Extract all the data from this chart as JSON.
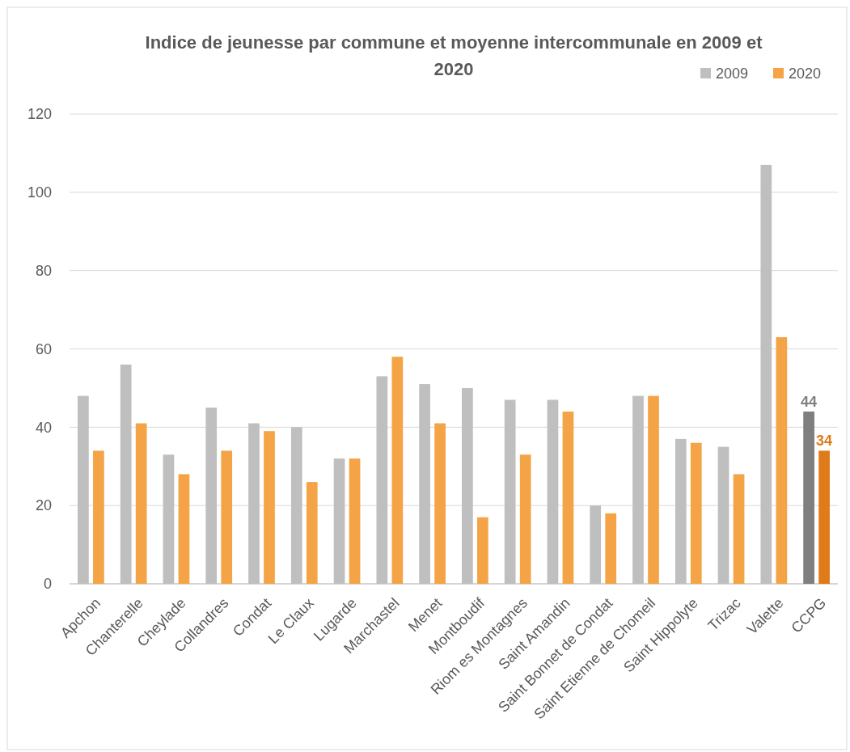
{
  "chart_data": {
    "type": "bar",
    "title": "Indice de jeunesse par commune et moyenne intercommunale en 2009 et 2020",
    "categories": [
      "Apchon",
      "Chanterelle",
      "Cheylade",
      "Collandres",
      "Condat",
      "Le Claux",
      "Lugarde",
      "Marchastel",
      "Menet",
      "Montboudif",
      "Riom es Montagnes",
      "Saint Amandin",
      "Saint Bonnet de Condat",
      "Saint Etienne de Chomeil",
      "Saint Hippolyte",
      "Trizac",
      "Valette",
      "CCPG"
    ],
    "series": [
      {
        "name": "2009",
        "color": "#bfbfbf",
        "colors": [
          "#bfbfbf",
          "#bfbfbf",
          "#bfbfbf",
          "#bfbfbf",
          "#bfbfbf",
          "#bfbfbf",
          "#bfbfbf",
          "#bfbfbf",
          "#bfbfbf",
          "#bfbfbf",
          "#bfbfbf",
          "#bfbfbf",
          "#bfbfbf",
          "#bfbfbf",
          "#bfbfbf",
          "#bfbfbf",
          "#bfbfbf",
          "#7f7f7f"
        ],
        "values": [
          48,
          56,
          33,
          45,
          41,
          40,
          32,
          53,
          51,
          50,
          47,
          47,
          20,
          48,
          37,
          35,
          107,
          44
        ],
        "value_labels": [
          null,
          null,
          null,
          null,
          null,
          null,
          null,
          null,
          null,
          null,
          null,
          null,
          null,
          null,
          null,
          null,
          null,
          "44"
        ]
      },
      {
        "name": "2020",
        "color": "#f4a447",
        "colors": [
          "#f4a447",
          "#f4a447",
          "#f4a447",
          "#f4a447",
          "#f4a447",
          "#f4a447",
          "#f4a447",
          "#f4a447",
          "#f4a447",
          "#f4a447",
          "#f4a447",
          "#f4a447",
          "#f4a447",
          "#f4a447",
          "#f4a447",
          "#f4a447",
          "#f4a447",
          "#e07b1a"
        ],
        "values": [
          34,
          41,
          28,
          34,
          39,
          26,
          32,
          58,
          41,
          17,
          33,
          44,
          18,
          48,
          36,
          28,
          63,
          34
        ],
        "value_labels": [
          null,
          null,
          null,
          null,
          null,
          null,
          null,
          null,
          null,
          null,
          null,
          null,
          null,
          null,
          null,
          null,
          null,
          "34"
        ]
      }
    ],
    "ylim": [
      0,
      120
    ],
    "yticks": [
      0,
      20,
      40,
      60,
      80,
      100,
      120
    ],
    "grid": "y",
    "legend": "top right"
  }
}
